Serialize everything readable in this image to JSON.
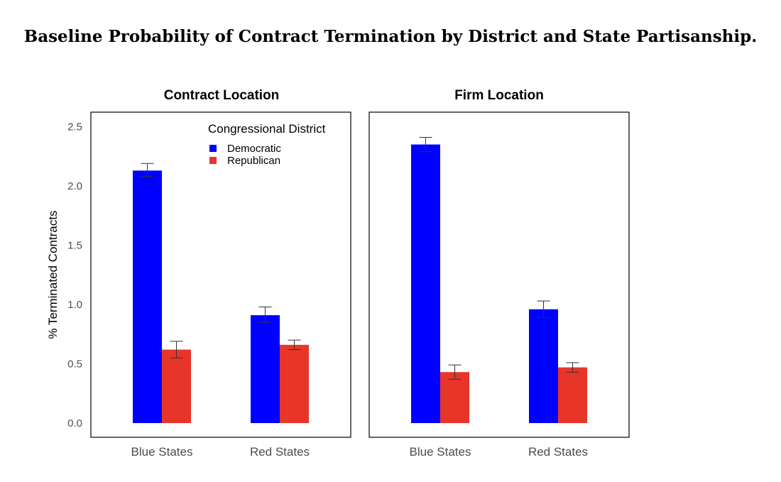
{
  "title": "Baseline Probability of Contract Termination by District and State Partisanship.",
  "colors": {
    "democratic": "#0000ff",
    "republican": "#e8352a",
    "error_bar": "#333333"
  },
  "chart_data": [
    {
      "type": "bar",
      "title": "Contract Location",
      "ylabel": "% Terminated Contracts",
      "xlabel": "",
      "ylim": [
        0,
        2.6
      ],
      "yticks": [
        "0.0",
        "0.5",
        "1.0",
        "1.5",
        "2.0",
        "2.5"
      ],
      "categories": [
        "Blue States",
        "Red States"
      ],
      "legend": {
        "title": "Congressional District",
        "position": "top-right"
      },
      "series": [
        {
          "name": "Democratic",
          "values": [
            2.13,
            0.91
          ],
          "ci_low": [
            2.08,
            0.85
          ],
          "ci_high": [
            2.19,
            0.98
          ]
        },
        {
          "name": "Republican",
          "values": [
            0.62,
            0.66
          ],
          "ci_low": [
            0.55,
            0.62
          ],
          "ci_high": [
            0.69,
            0.7
          ]
        }
      ]
    },
    {
      "type": "bar",
      "title": "Firm Location",
      "ylabel": "",
      "xlabel": "",
      "ylim": [
        0,
        2.6
      ],
      "categories": [
        "Blue States",
        "Red States"
      ],
      "series": [
        {
          "name": "Democratic",
          "values": [
            2.35,
            0.96
          ],
          "ci_low": [
            2.29,
            0.89
          ],
          "ci_high": [
            2.41,
            1.03
          ]
        },
        {
          "name": "Republican",
          "values": [
            0.43,
            0.47
          ],
          "ci_low": [
            0.37,
            0.43
          ],
          "ci_high": [
            0.49,
            0.51
          ]
        }
      ]
    }
  ]
}
